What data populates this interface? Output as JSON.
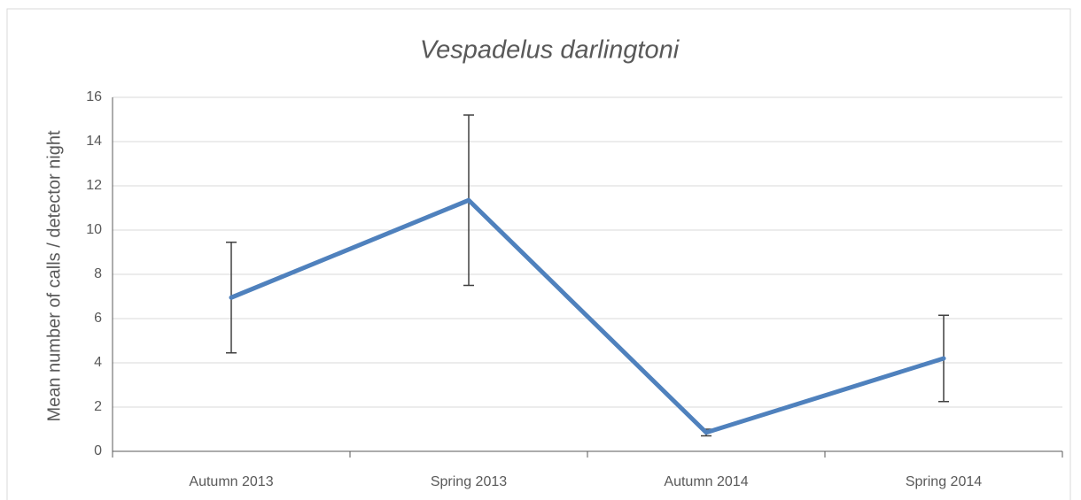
{
  "chart_data": {
    "type": "line",
    "title": "Vespadelus darlingtoni",
    "y_label": "Mean number of calls / detector night",
    "categories": [
      "Autumn 2013",
      "Spring 2013",
      "Autumn 2014",
      "Spring 2014"
    ],
    "series": [
      {
        "name": "Vespadelus darlingtoni",
        "color": "#4f81bd",
        "values": [
          6.95,
          11.35,
          0.85,
          4.2
        ],
        "errors": [
          2.5,
          3.85,
          0.15,
          1.95
        ]
      }
    ],
    "ylim": [
      0,
      16
    ],
    "yticks": [
      0,
      2,
      4,
      6,
      8,
      10,
      12,
      14,
      16
    ],
    "grid": true
  }
}
